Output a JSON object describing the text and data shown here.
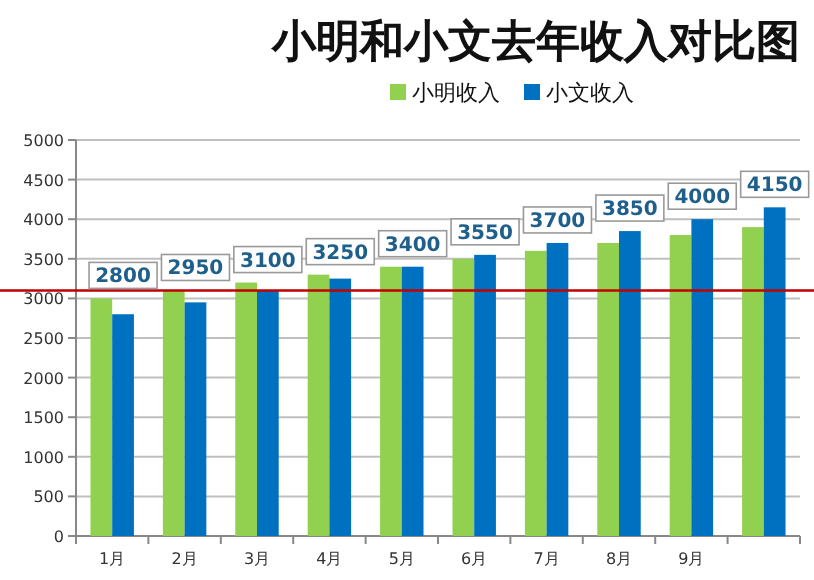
{
  "chart_data": {
    "type": "bar",
    "title": "小明和小文去年收入对比图",
    "categories": [
      "1月",
      "2月",
      "3月",
      "4月",
      "5月",
      "6月",
      "7月",
      "8月",
      "9月",
      null
    ],
    "series": [
      {
        "name": "小明收入",
        "color": "#92d050",
        "values": [
          3000,
          3100,
          3200,
          3300,
          3400,
          3500,
          3600,
          3700,
          3800,
          3900
        ]
      },
      {
        "name": "小文收入",
        "color": "#0070c0",
        "values": [
          2800,
          2950,
          3100,
          3250,
          3400,
          3550,
          3700,
          3850,
          4000,
          4150
        ],
        "value_labels": [
          "2800",
          "2950",
          "3100",
          "3250",
          "3400",
          "3550",
          "3700",
          "3850",
          "4000",
          "4150"
        ]
      }
    ],
    "ylim": [
      0,
      5000
    ],
    "yticks": [
      0,
      500,
      1000,
      1500,
      2000,
      2500,
      3000,
      3500,
      4000,
      4500,
      5000
    ],
    "grid": "y",
    "legend": "top",
    "ref_lines": [
      {
        "axis": "y",
        "value": 3100,
        "color": "#c00000"
      }
    ]
  }
}
